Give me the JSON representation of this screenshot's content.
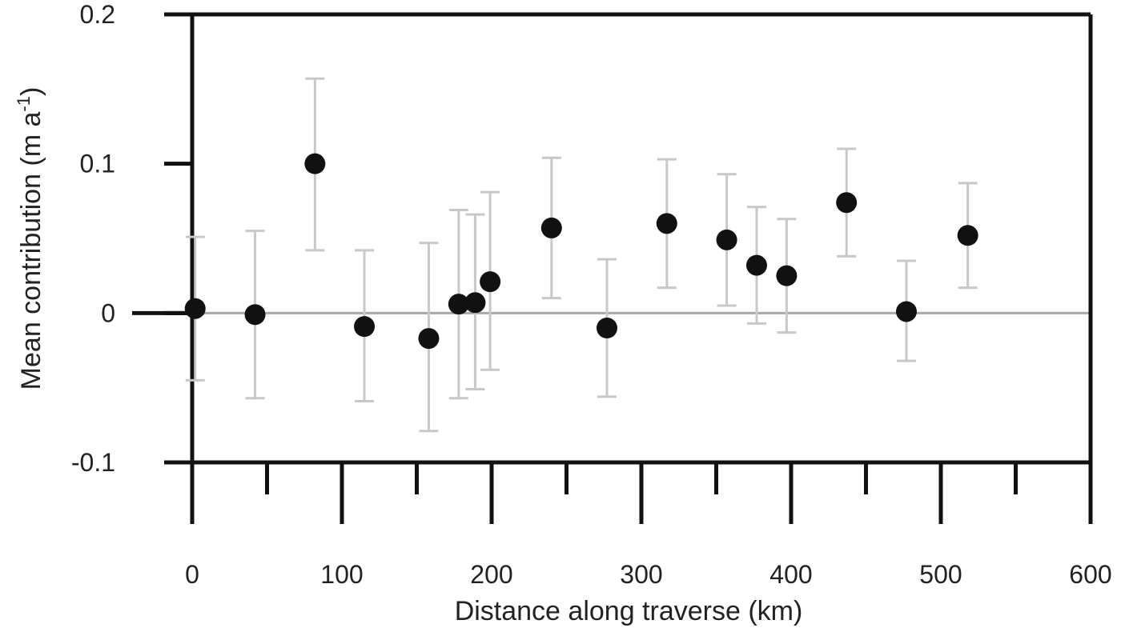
{
  "chart_data": {
    "type": "scatter",
    "xlabel": "Distance along traverse (km)",
    "ylabel_main": "Mean contribution (m a",
    "ylabel_sup": "-1",
    "ylabel_close": ")",
    "xlim": [
      0,
      600
    ],
    "ylim": [
      -0.1,
      0.2
    ],
    "x_ticks_major": [
      0,
      100,
      200,
      300,
      400,
      500,
      600
    ],
    "x_tick_labels": [
      "0",
      "100",
      "200",
      "300",
      "400",
      "500",
      "600"
    ],
    "x_ticks_minor": [
      50,
      150,
      250,
      350,
      450,
      550
    ],
    "y_ticks": [
      -0.1,
      0,
      0.1,
      0.2
    ],
    "y_tick_labels": [
      "-0.1",
      "0",
      "0.1",
      "0.2"
    ],
    "zero_line": true,
    "grid": false,
    "points": [
      {
        "x": 2,
        "y": 0.003,
        "err_low": -0.045,
        "err_high": 0.051
      },
      {
        "x": 42,
        "y": -0.001,
        "err_low": -0.057,
        "err_high": 0.055
      },
      {
        "x": 82,
        "y": 0.1,
        "err_low": 0.042,
        "err_high": 0.157
      },
      {
        "x": 115,
        "y": -0.009,
        "err_low": -0.059,
        "err_high": 0.042
      },
      {
        "x": 158,
        "y": -0.017,
        "err_low": -0.079,
        "err_high": 0.047
      },
      {
        "x": 178,
        "y": 0.006,
        "err_low": -0.057,
        "err_high": 0.069
      },
      {
        "x": 189,
        "y": 0.007,
        "err_low": -0.051,
        "err_high": 0.066
      },
      {
        "x": 199,
        "y": 0.021,
        "err_low": -0.038,
        "err_high": 0.081
      },
      {
        "x": 240,
        "y": 0.057,
        "err_low": 0.01,
        "err_high": 0.104
      },
      {
        "x": 277,
        "y": -0.01,
        "err_low": -0.056,
        "err_high": 0.036
      },
      {
        "x": 317,
        "y": 0.06,
        "err_low": 0.017,
        "err_high": 0.103
      },
      {
        "x": 357,
        "y": 0.049,
        "err_low": 0.005,
        "err_high": 0.093
      },
      {
        "x": 377,
        "y": 0.032,
        "err_low": -0.007,
        "err_high": 0.071
      },
      {
        "x": 397,
        "y": 0.025,
        "err_low": -0.013,
        "err_high": 0.063
      },
      {
        "x": 437,
        "y": 0.074,
        "err_low": 0.038,
        "err_high": 0.11
      },
      {
        "x": 477,
        "y": 0.001,
        "err_low": -0.032,
        "err_high": 0.035
      },
      {
        "x": 518,
        "y": 0.052,
        "err_low": 0.017,
        "err_high": 0.087
      }
    ],
    "colors": {
      "marker": "#111111",
      "errorbar": "#c8c8c8",
      "zero_line": "#a8a8a8",
      "axis": "#111111"
    }
  }
}
